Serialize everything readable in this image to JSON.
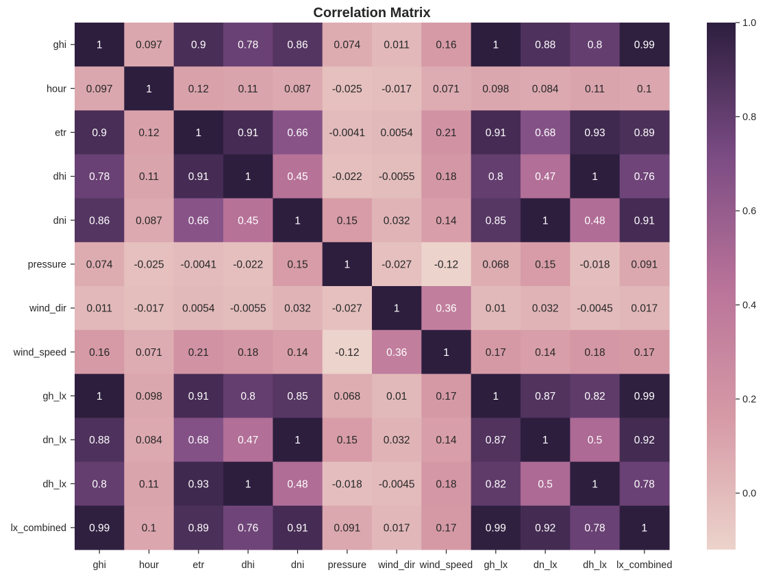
{
  "chart_data": {
    "type": "heatmap",
    "title": "Correlation Matrix",
    "xlabel": "",
    "ylabel": "",
    "x_categories": [
      "ghi",
      "hour",
      "etr",
      "dhi",
      "dni",
      "pressure",
      "wind_dir",
      "wind_speed",
      "gh_lx",
      "dn_lx",
      "dh_lx",
      "lx_combined"
    ],
    "y_categories": [
      "ghi",
      "hour",
      "etr",
      "dhi",
      "dni",
      "pressure",
      "wind_dir",
      "wind_speed",
      "gh_lx",
      "dn_lx",
      "dh_lx",
      "lx_combined"
    ],
    "values": [
      [
        1,
        0.097,
        0.9,
        0.78,
        0.86,
        0.074,
        0.011,
        0.16,
        1,
        0.88,
        0.8,
        0.99
      ],
      [
        0.097,
        1,
        0.12,
        0.11,
        0.087,
        -0.025,
        -0.017,
        0.071,
        0.098,
        0.084,
        0.11,
        0.1
      ],
      [
        0.9,
        0.12,
        1,
        0.91,
        0.66,
        -0.0041,
        0.0054,
        0.21,
        0.91,
        0.68,
        0.93,
        0.89
      ],
      [
        0.78,
        0.11,
        0.91,
        1,
        0.45,
        -0.022,
        -0.0055,
        0.18,
        0.8,
        0.47,
        1,
        0.76
      ],
      [
        0.86,
        0.087,
        0.66,
        0.45,
        1,
        0.15,
        0.032,
        0.14,
        0.85,
        1,
        0.48,
        0.91
      ],
      [
        0.074,
        -0.025,
        -0.0041,
        -0.022,
        0.15,
        1,
        -0.027,
        -0.12,
        0.068,
        0.15,
        -0.018,
        0.091
      ],
      [
        0.011,
        -0.017,
        0.0054,
        -0.0055,
        0.032,
        -0.027,
        1,
        0.36,
        0.01,
        0.032,
        -0.0045,
        0.017
      ],
      [
        0.16,
        0.071,
        0.21,
        0.18,
        0.14,
        -0.12,
        0.36,
        1,
        0.17,
        0.14,
        0.18,
        0.17
      ],
      [
        1,
        0.098,
        0.91,
        0.8,
        0.85,
        0.068,
        0.01,
        0.17,
        1,
        0.87,
        0.82,
        0.99
      ],
      [
        0.88,
        0.084,
        0.68,
        0.47,
        1,
        0.15,
        0.032,
        0.14,
        0.87,
        1,
        0.5,
        0.92
      ],
      [
        0.8,
        0.11,
        0.93,
        1,
        0.48,
        -0.018,
        -0.0045,
        0.18,
        0.82,
        0.5,
        1,
        0.78
      ],
      [
        0.99,
        0.1,
        0.89,
        0.76,
        0.91,
        0.091,
        0.017,
        0.17,
        0.99,
        0.92,
        0.78,
        1
      ]
    ],
    "vmin": -0.12,
    "vmax": 1.0,
    "colorbar": {
      "ticks": [
        0.0,
        0.2,
        0.4,
        0.6,
        0.8,
        1.0
      ],
      "tick_labels": [
        "0.0",
        "0.2",
        "0.4",
        "0.6",
        "0.8",
        "1.0"
      ]
    },
    "colors": {
      "low": "#ecd3cb",
      "mid_low": "#d69aa6",
      "mid": "#b97399",
      "mid_high": "#7a4b83",
      "high": "#2d1e3e",
      "annotation_dark": "#262626",
      "annotation_light": "#ffffff"
    },
    "grid": false
  }
}
